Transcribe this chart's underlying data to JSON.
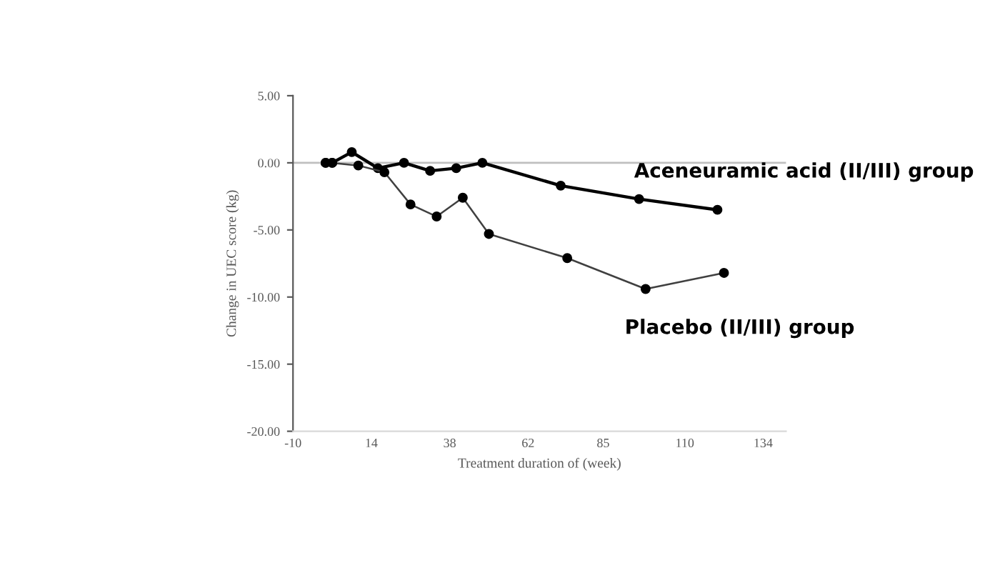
{
  "chart_data": {
    "type": "line",
    "xlabel": "Treatment duration of (week)",
    "ylabel": "Change in UEC score (kg)",
    "xlim": [
      -10,
      141
    ],
    "xticks": [
      -10,
      14,
      38,
      62,
      85,
      110,
      134
    ],
    "ylim": [
      -20,
      5
    ],
    "yticks": [
      {
        "value": -20,
        "label": "-20.00"
      },
      {
        "value": -15,
        "label": "-15.00"
      },
      {
        "value": -10,
        "label": "-10.00"
      },
      {
        "value": -5,
        "label": "-5.00"
      },
      {
        "value": 0,
        "label": "0.00"
      },
      {
        "value": 5,
        "label": "5.00"
      }
    ],
    "grid": false,
    "legend": false,
    "marker": "circle",
    "line_style": "solid",
    "ref_lines": [
      {
        "axis": "y",
        "value": 0,
        "color": "#bfbfbf"
      }
    ],
    "series": [
      {
        "name": "Aceneuramic acid (II/III) group",
        "color": "#000000",
        "x": [
          0,
          2,
          8,
          16,
          24,
          32,
          40,
          48,
          72,
          96,
          120
        ],
        "values": [
          0,
          0,
          0.8,
          -0.4,
          0,
          -0.6,
          -0.4,
          0,
          -1.7,
          -2.7,
          -3.5
        ]
      },
      {
        "name": "Placebo (II/III) group",
        "color": "#404040",
        "x": [
          0,
          2,
          10,
          18,
          26,
          34,
          42,
          50,
          74,
          98,
          122
        ],
        "values": [
          0,
          0,
          -0.2,
          -0.7,
          -3.1,
          -4.0,
          -2.6,
          -5.3,
          -7.1,
          -9.4,
          -8.2
        ]
      }
    ]
  }
}
